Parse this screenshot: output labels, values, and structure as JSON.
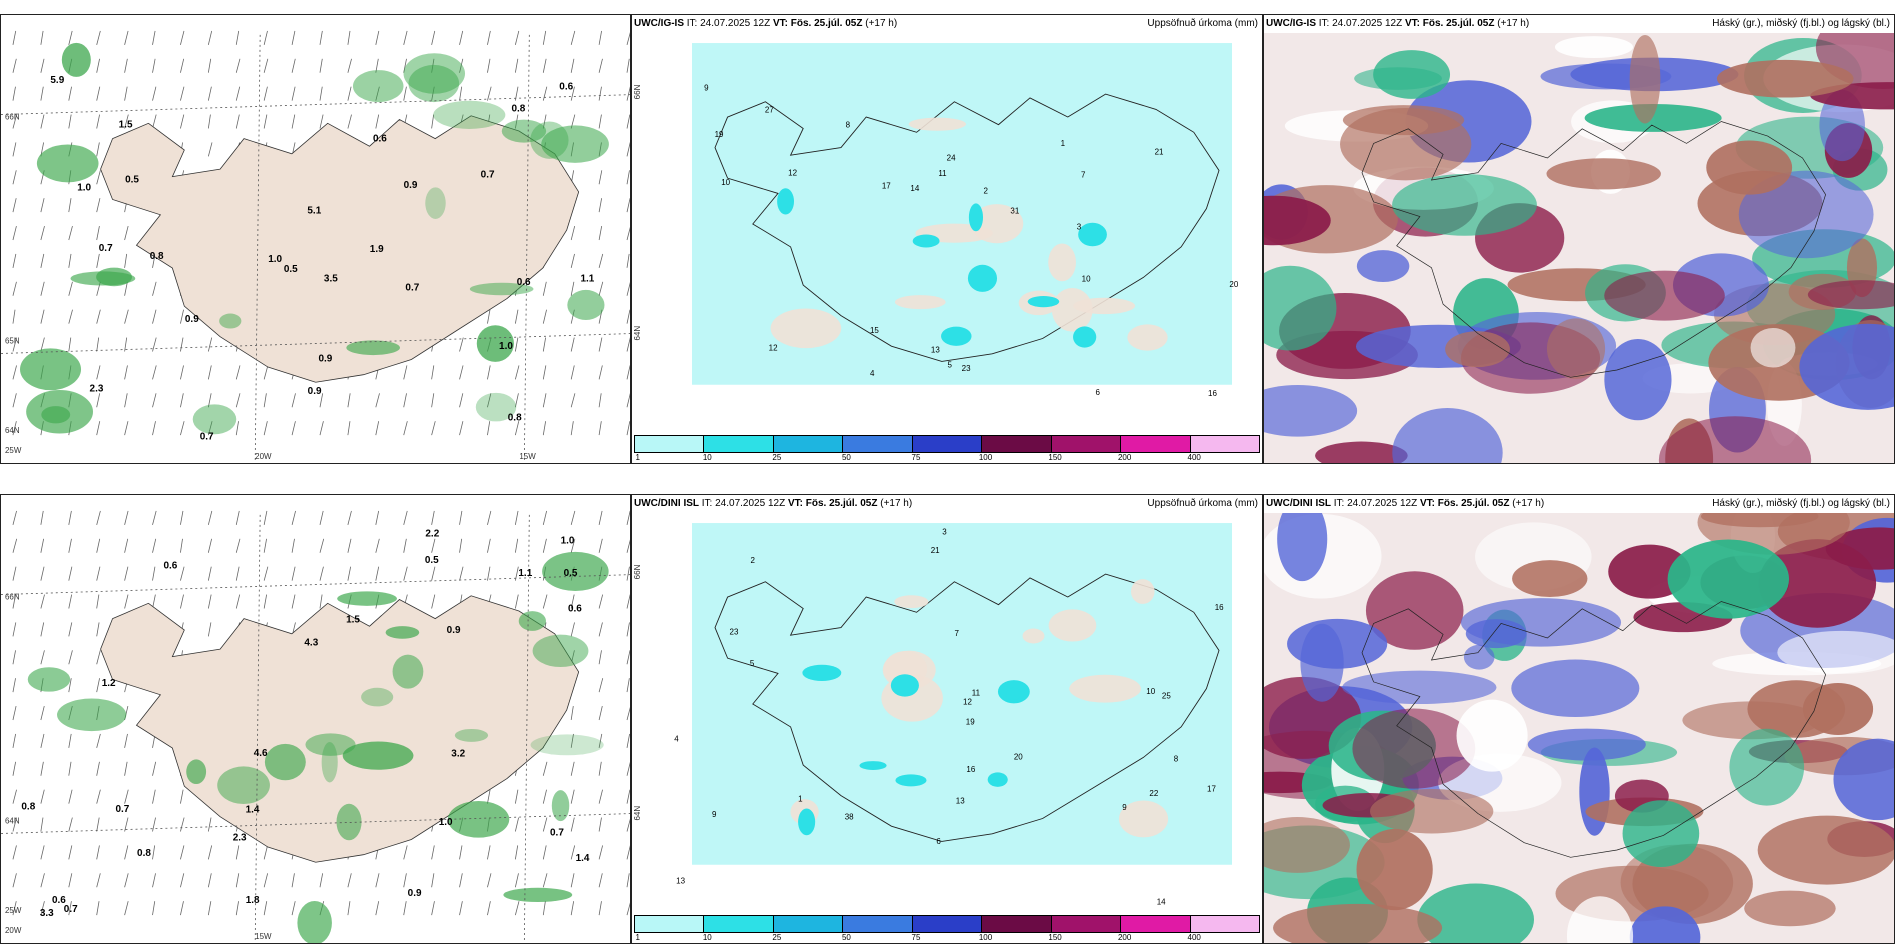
{
  "rows": [
    {
      "model": "UWC/IG-IS",
      "it": "IT: 24.07.2025 12Z",
      "vt_label": "VT:",
      "vt": "Fös. 25.júl. 05Z",
      "lead": "(+17 h)",
      "wind_values": [
        "0.9",
        "0.7",
        "0.8",
        "5.9",
        "5.1",
        "0.7",
        "1.0",
        "1.0",
        "0.6",
        "0.7",
        "0.7",
        "0.5",
        "0.9",
        "0.6",
        "0.5",
        "0.9",
        "1.5",
        "2.3",
        "3.5",
        "0.8",
        "1.9",
        "0.6",
        "0.9",
        "1.1",
        "0.8",
        "1.0"
      ],
      "precip_values": [
        "5",
        "7",
        "10",
        "13",
        "12",
        "15",
        "8",
        "4",
        "3",
        "17",
        "24",
        "23",
        "20",
        "16",
        "19",
        "11",
        "9",
        "6",
        "12",
        "27",
        "21",
        "14",
        "31",
        "10",
        "2",
        "1"
      ],
      "wind_geo": [
        "66N",
        "65N",
        "64N",
        "25W",
        "20W",
        "15W"
      ],
      "precip_geo": [
        "66N",
        "64N"
      ]
    },
    {
      "model": "UWC/DINI ISL",
      "it": "IT: 24.07.2025 12Z",
      "vt_label": "VT:",
      "vt": "Fös. 25.júl. 05Z",
      "lead": "(+17 h)",
      "wind_values": [
        "0.7",
        "0.5",
        "0.6",
        "0.8",
        "1.4",
        "1.0",
        "3.3",
        "4.6",
        "1.8",
        "3.2",
        "0.7",
        "0.6",
        "0.9",
        "0.9",
        "0.5",
        "1.2",
        "1.0",
        "2.2",
        "4.3",
        "2.3",
        "1.5",
        "0.6",
        "0.8",
        "1.1",
        "0.7",
        "1.4"
      ],
      "precip_values": [
        "5",
        "6",
        "9",
        "13",
        "20",
        "19",
        "16",
        "22",
        "21",
        "11",
        "12",
        "17",
        "25",
        "16",
        "38",
        "14",
        "7",
        "8",
        "10",
        "3",
        "4",
        "2",
        "1",
        "13",
        "23",
        "9"
      ],
      "wind_geo": [
        "66N",
        "64N",
        "25W",
        "20W",
        "15W"
      ],
      "precip_geo": [
        "66N",
        "64N"
      ]
    }
  ],
  "precip_panel_title": "Uppsöfnuð úrkoma (mm)",
  "cloud_panel_title": "Háský (gr.), miðský (fj.bl.) og lágský (bl.)",
  "colorbar": {
    "ticks": [
      "1",
      "10",
      "25",
      "50",
      "75",
      "100",
      "150",
      "200",
      "400"
    ],
    "colors": [
      "#b8f7f7",
      "#2de0e6",
      "#1eb5e0",
      "#3a7be0",
      "#2a3ec8",
      "#6b0b45",
      "#a0126a",
      "#e01aa5",
      "#f5b8ef"
    ]
  },
  "palette": {
    "land": "#efe1d6",
    "sea_precip": "#bff7f7",
    "wind_green": "#3aa64a",
    "cloud_high": "#8b1d4a",
    "cloud_mid": "#5566d8",
    "cloud_low": "#2cb58a"
  }
}
